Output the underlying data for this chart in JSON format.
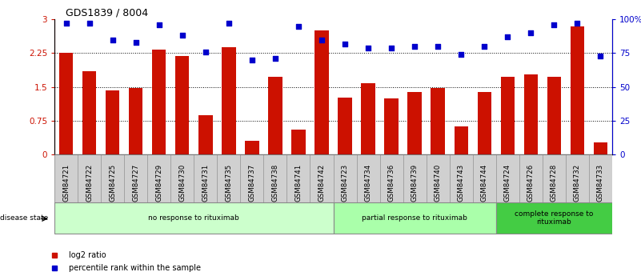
{
  "title": "GDS1839 / 8004",
  "samples": [
    "GSM84721",
    "GSM84722",
    "GSM84725",
    "GSM84727",
    "GSM84729",
    "GSM84730",
    "GSM84731",
    "GSM84735",
    "GSM84737",
    "GSM84738",
    "GSM84741",
    "GSM84742",
    "GSM84723",
    "GSM84734",
    "GSM84736",
    "GSM84739",
    "GSM84740",
    "GSM84743",
    "GSM84744",
    "GSM84724",
    "GSM84726",
    "GSM84728",
    "GSM84732",
    "GSM84733"
  ],
  "log2_ratio": [
    2.25,
    1.85,
    1.42,
    1.48,
    2.32,
    2.18,
    0.88,
    2.38,
    0.3,
    1.72,
    0.55,
    2.75,
    1.27,
    1.58,
    1.25,
    1.38,
    1.47,
    0.63,
    1.38,
    1.72,
    1.78,
    1.72,
    2.85,
    0.27
  ],
  "percentile": [
    97,
    97,
    85,
    83,
    96,
    88,
    76,
    97,
    70,
    71,
    95,
    85,
    82,
    79,
    79,
    80,
    80,
    74,
    80,
    87,
    90,
    96,
    97,
    73
  ],
  "bar_color": "#cc1100",
  "dot_color": "#0000cc",
  "ylim_left": [
    0,
    3.0
  ],
  "ylim_right": [
    0,
    100
  ],
  "yticks_left": [
    0,
    0.75,
    1.5,
    2.25,
    3.0
  ],
  "ytick_labels_left": [
    "0",
    "0.75",
    "1.5",
    "2.25",
    "3"
  ],
  "yticks_right": [
    0,
    25,
    50,
    75,
    100
  ],
  "ytick_labels_right": [
    "0",
    "25",
    "50",
    "75",
    "100%"
  ],
  "groups": [
    {
      "label": "no response to rituximab",
      "start": 0,
      "end": 12,
      "color": "#ccffcc"
    },
    {
      "label": "partial response to rituximab",
      "start": 12,
      "end": 19,
      "color": "#aaffaa"
    },
    {
      "label": "complete response to\nrituximab",
      "start": 19,
      "end": 24,
      "color": "#44cc44"
    }
  ],
  "legend_items": [
    {
      "label": "log2 ratio",
      "color": "#cc1100"
    },
    {
      "label": "percentile rank within the sample",
      "color": "#0000cc"
    }
  ],
  "disease_state_label": "disease state",
  "background_color": "#ffffff",
  "tick_label_color_left": "#cc1100",
  "tick_label_color_right": "#0000cc",
  "xtick_bg": "#d0d0d0"
}
